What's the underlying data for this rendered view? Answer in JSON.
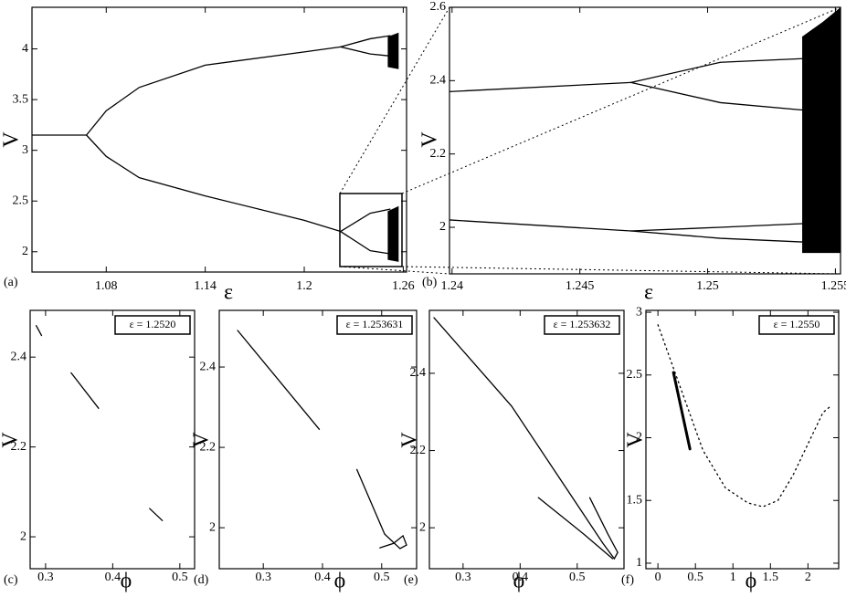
{
  "chart_data": [
    {
      "type": "line",
      "panel_label": "(a)",
      "xlabel": "ε",
      "ylabel": "V",
      "xlim": [
        1.035,
        1.262
      ],
      "ylim": [
        1.8,
        4.41
      ],
      "xticks": [
        1.08,
        1.14,
        1.2,
        1.26
      ],
      "yticks": [
        2,
        2.5,
        3,
        3.5,
        4
      ],
      "x": [
        1.035,
        1.068,
        1.08,
        1.1,
        1.14,
        1.2,
        1.222,
        1.24,
        1.252
      ],
      "series": [
        {
          "color": "#000000",
          "values": [
            3.15,
            3.15,
            null,
            null,
            null,
            null,
            null,
            null,
            null
          ]
        },
        {
          "color": "#000000",
          "values": [
            null,
            3.15,
            3.39,
            3.62,
            3.84,
            3.97,
            4.02,
            null,
            null
          ]
        },
        {
          "color": "#000000",
          "values": [
            null,
            null,
            null,
            null,
            null,
            null,
            4.02,
            4.1,
            4.13
          ]
        },
        {
          "color": "#000000",
          "values": [
            null,
            null,
            null,
            null,
            null,
            null,
            4.02,
            3.95,
            3.93
          ]
        },
        {
          "color": "#000000",
          "values": [
            null,
            3.15,
            2.94,
            2.73,
            2.55,
            2.31,
            2.2,
            null,
            null
          ]
        },
        {
          "color": "#000000",
          "values": [
            null,
            null,
            null,
            null,
            null,
            null,
            2.2,
            2.38,
            2.42
          ]
        },
        {
          "color": "#000000",
          "values": [
            null,
            null,
            null,
            null,
            null,
            null,
            2.2,
            2.01,
            1.98
          ]
        }
      ],
      "bands": [
        {
          "x": [
            1.2506,
            1.2572
          ],
          "low": [
            3.82,
            3.8
          ],
          "high": [
            4.12,
            4.16
          ]
        },
        {
          "x": [
            1.2506,
            1.2572
          ],
          "low": [
            1.92,
            1.9
          ],
          "high": [
            2.4,
            2.45
          ]
        }
      ]
    },
    {
      "type": "line",
      "panel_label": "(b)",
      "xlabel": "ε",
      "ylabel": "V",
      "xlim": [
        1.2399,
        1.2552
      ],
      "ylim": [
        1.873,
        2.6
      ],
      "xticks": [
        1.24,
        1.245,
        1.25,
        1.255
      ],
      "yticks": [
        2,
        2.2,
        2.4,
        2.6
      ],
      "x": [
        1.2399,
        1.247,
        1.2505,
        1.2537
      ],
      "series": [
        {
          "color": "#000000",
          "values": [
            2.37,
            2.395,
            null,
            null
          ]
        },
        {
          "color": "#000000",
          "values": [
            null,
            2.395,
            2.45,
            2.46
          ]
        },
        {
          "color": "#000000",
          "values": [
            null,
            2.395,
            2.34,
            2.32
          ]
        },
        {
          "color": "#000000",
          "values": [
            2.02,
            1.99,
            null,
            null
          ]
        },
        {
          "color": "#000000",
          "values": [
            null,
            1.99,
            2,
            2.01
          ]
        },
        {
          "color": "#000000",
          "values": [
            null,
            1.99,
            1.97,
            1.96
          ]
        }
      ],
      "bands": [
        {
          "x": [
            1.2537,
            1.2545,
            1.2552
          ],
          "low": [
            1.93,
            1.93,
            1.93
          ],
          "high": [
            2.52,
            2.56,
            2.6
          ]
        }
      ]
    },
    {
      "type": "line",
      "panel_label": "(c)",
      "xlabel": "ϕ",
      "ylabel": "V",
      "annotation": "ε = 1.2520",
      "xlim": [
        0.277,
        0.522
      ],
      "ylim": [
        1.929,
        2.504
      ],
      "xticks": [
        0.3,
        0.4,
        0.5
      ],
      "yticks": [
        2,
        2.2,
        2.4
      ],
      "series": [
        {
          "color": "#000000",
          "x": [
            0.286,
            0.294
          ],
          "values": [
            2.47,
            2.448
          ]
        },
        {
          "color": "#000000",
          "x": [
            0.338,
            0.379
          ],
          "values": [
            2.365,
            2.286
          ]
        },
        {
          "color": "#000000",
          "x": [
            0.455,
            0.474
          ],
          "values": [
            2.063,
            2.036
          ]
        }
      ]
    },
    {
      "type": "line",
      "panel_label": "(d)",
      "xlabel": "ϕ",
      "ylabel": "V",
      "annotation": "ε = 1.253631",
      "xlim": [
        0.2256,
        0.559
      ],
      "ylim": [
        1.898,
        2.541
      ],
      "xticks": [
        0.3,
        0.4,
        0.5
      ],
      "yticks": [
        2,
        2.2,
        2.4
      ],
      "series": [
        {
          "color": "#000000",
          "x": [
            0.2566,
            0.3946
          ],
          "values": [
            2.491,
            2.245
          ]
        },
        {
          "color": "#000000",
          "x": [
            0.458,
            0.505,
            0.531,
            0.542,
            0.536,
            0.52,
            0.497
          ],
          "values": [
            2.145,
            1.984,
            1.948,
            1.957,
            1.98,
            1.961,
            1.95
          ]
        }
      ]
    },
    {
      "type": "line",
      "panel_label": "(e)",
      "xlabel": "ϕ",
      "ylabel": "V",
      "annotation": "ε = 1.253632",
      "xlim": [
        0.241,
        0.582
      ],
      "ylim": [
        1.894,
        2.563
      ],
      "xticks": [
        0.3,
        0.4,
        0.5
      ],
      "yticks": [
        2,
        2.2,
        2.4
      ],
      "series": [
        {
          "color": "#000000",
          "x": [
            0.249,
            0.385,
            0.481,
            0.545,
            0.565,
            0.571,
            0.554,
            0.522
          ],
          "values": [
            2.544,
            2.315,
            2.102,
            1.96,
            1.92,
            1.936,
            1.983,
            2.078
          ]
        },
        {
          "color": "#000000",
          "x": [
            0.432,
            0.512,
            0.562
          ],
          "values": [
            2.078,
            1.983,
            1.92
          ]
        }
      ]
    },
    {
      "type": "line",
      "panel_label": "(f)",
      "xlabel": "ϕ",
      "ylabel": "V",
      "annotation": "ε = 1.2550",
      "xlim": [
        -0.16,
        2.41
      ],
      "ylim": [
        0.956,
        3.015
      ],
      "xticks": [
        0,
        0.5,
        1,
        1.5,
        2
      ],
      "yticks": [
        1,
        1.5,
        2,
        2.5,
        3
      ],
      "series": [
        {
          "color": "#000000",
          "width": 3,
          "x": [
            0.207,
            0.427
          ],
          "values": [
            2.52,
            1.91
          ]
        },
        {
          "color": "#000000",
          "style": "dotted",
          "x": [
            0,
            0.3,
            0.6,
            0.9,
            1.2,
            1.4,
            1.6,
            1.8,
            2,
            2.2,
            2.3
          ],
          "values": [
            2.9,
            2.4,
            1.9,
            1.6,
            1.48,
            1.45,
            1.5,
            1.7,
            1.95,
            2.2,
            2.25
          ]
        }
      ]
    }
  ]
}
